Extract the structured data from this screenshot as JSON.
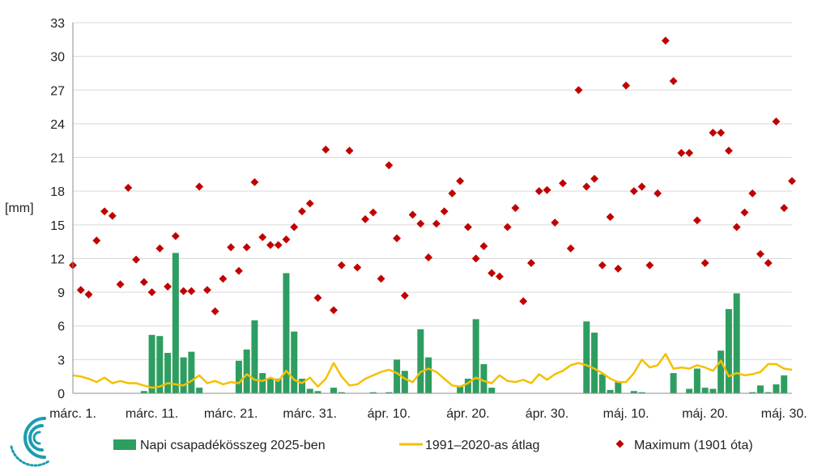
{
  "chart_data": {
    "type": "bar",
    "ylabel": "[mm]",
    "ylim": [
      0,
      33
    ],
    "yticks": [
      0,
      3,
      6,
      9,
      12,
      15,
      18,
      21,
      24,
      27,
      30,
      33
    ],
    "xtick_labels": [
      "márc. 1.",
      "márc. 11.",
      "márc. 21.",
      "márc. 31.",
      "ápr. 10.",
      "ápr. 20.",
      "ápr. 30.",
      "máj. 10.",
      "máj. 20.",
      "máj. 30."
    ],
    "grid": "horizontal",
    "legend_position": "bottom",
    "colors": {
      "bars": "#2e9e60",
      "line": "#f5c000",
      "markers": "#c00000"
    },
    "series": [
      {
        "name": "Napi csapadékösszeg 2025-ben",
        "type": "bar",
        "values": [
          0,
          0,
          0,
          0,
          0,
          0,
          0,
          0,
          0,
          0.2,
          5.2,
          5.1,
          3.6,
          12.5,
          3.2,
          3.7,
          0.5,
          0,
          0,
          0,
          0,
          2.9,
          3.9,
          6.5,
          1.8,
          1.3,
          1.3,
          10.7,
          5.5,
          1.3,
          0.4,
          0.2,
          0,
          0.5,
          0.1,
          0,
          0,
          0,
          0.1,
          0,
          0.1,
          3.0,
          2.0,
          0,
          5.7,
          3.2,
          0,
          0,
          0,
          0.6,
          1.3,
          6.6,
          2.6,
          0.5,
          0,
          0,
          0,
          0,
          0,
          0,
          0,
          0,
          0,
          0,
          0,
          6.4,
          5.4,
          1.7,
          0.3,
          1.0,
          0,
          0.2,
          0.1,
          0,
          0,
          0,
          1.8,
          0,
          0.4,
          2.2,
          0.5,
          0.4,
          3.8,
          7.5,
          8.9,
          0,
          0.1,
          0.7,
          0.1,
          0.8,
          1.6,
          0
        ]
      },
      {
        "name": "1991–2020-as átlag",
        "type": "line",
        "values": [
          1.6,
          1.5,
          1.3,
          1.0,
          1.4,
          0.9,
          1.1,
          0.9,
          0.9,
          0.7,
          0.5,
          0.6,
          0.9,
          0.8,
          0.7,
          1.1,
          1.6,
          0.9,
          1.1,
          0.8,
          1.0,
          0.9,
          1.7,
          1.2,
          1.1,
          1.4,
          1.1,
          2.0,
          1.2,
          0.9,
          1.4,
          0.6,
          1.3,
          2.7,
          1.5,
          0.7,
          0.8,
          1.3,
          1.6,
          1.9,
          2.1,
          1.8,
          1.3,
          1.0,
          1.9,
          2.2,
          1.9,
          1.3,
          0.7,
          0.6,
          0.9,
          1.4,
          1.1,
          0.9,
          1.6,
          1.1,
          1.0,
          1.2,
          0.9,
          1.7,
          1.2,
          1.7,
          2.0,
          2.5,
          2.7,
          2.5,
          2.2,
          1.8,
          1.3,
          1.0,
          1.0,
          1.8,
          3.0,
          2.3,
          2.5,
          3.5,
          2.2,
          2.3,
          2.2,
          2.5,
          2.3,
          2.0,
          2.9,
          1.5,
          1.8,
          1.6,
          1.7,
          1.9,
          2.6,
          2.6,
          2.2,
          2.1
        ]
      },
      {
        "name": "Maximum (1901 óta)",
        "type": "scatter",
        "values": [
          11.4,
          9.2,
          8.8,
          13.6,
          16.2,
          15.8,
          9.7,
          18.3,
          11.9,
          9.9,
          9.0,
          12.9,
          9.5,
          14.0,
          9.1,
          9.1,
          18.4,
          9.2,
          7.3,
          10.2,
          13.0,
          10.9,
          13.0,
          18.8,
          13.9,
          13.2,
          13.2,
          13.7,
          14.8,
          16.2,
          16.9,
          8.5,
          21.7,
          7.4,
          11.4,
          21.6,
          11.2,
          15.5,
          16.1,
          10.2,
          20.3,
          13.8,
          8.7,
          15.9,
          15.1,
          12.1,
          15.1,
          16.2,
          17.8,
          18.9,
          14.8,
          12.0,
          13.1,
          10.7,
          10.4,
          14.8,
          16.5,
          8.2,
          11.6,
          18.0,
          18.1,
          15.2,
          18.7,
          12.9,
          27.0,
          18.4,
          19.1,
          11.4,
          15.7,
          11.1,
          27.4,
          18.0,
          18.4,
          11.4,
          17.8,
          31.4,
          27.8,
          21.4,
          21.4,
          15.4,
          11.6,
          23.2,
          23.2,
          21.6,
          14.8,
          16.1,
          17.8,
          12.4,
          11.6,
          24.2,
          16.5,
          18.9
        ]
      }
    ]
  }
}
